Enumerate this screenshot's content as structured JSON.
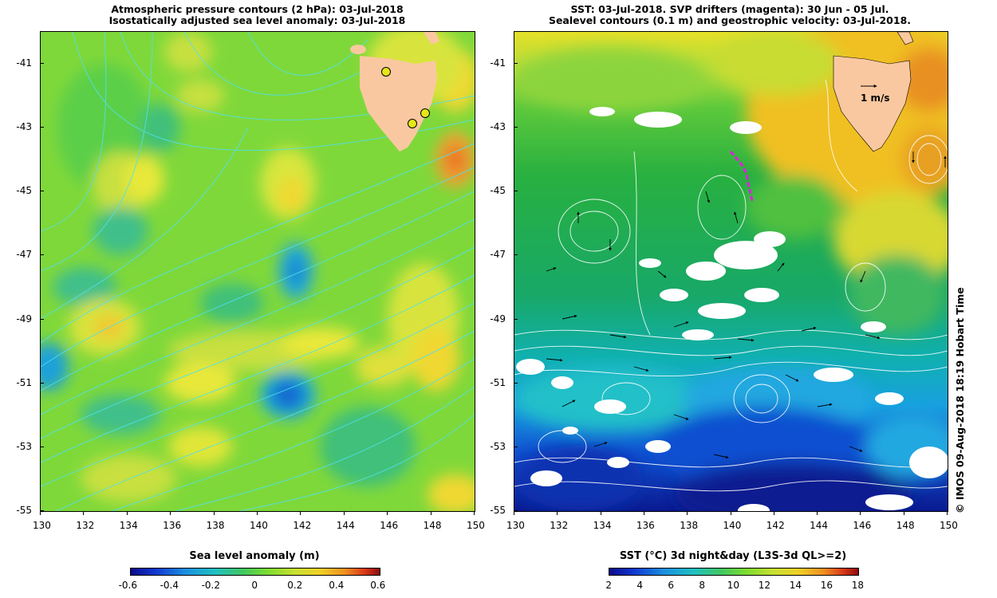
{
  "left_panel": {
    "title_line1": "Atmospheric pressure contours (2 hPa): 03-Jul-2018",
    "title_line2": "Isostatically adjusted sea level anomaly: 03-Jul-2018",
    "y_ticks": [
      "-41",
      "-43",
      "-45",
      "-47",
      "-49",
      "-51",
      "-53",
      "-55"
    ],
    "x_ticks": [
      "130",
      "132",
      "134",
      "136",
      "138",
      "140",
      "142",
      "144",
      "146",
      "148",
      "150"
    ],
    "colorbar": {
      "title": "Sea level anomaly (m)",
      "ticks": [
        "-0.6",
        "-0.4",
        "-0.2",
        "0",
        "0.2",
        "0.4",
        "0.6"
      ]
    },
    "tide_gauge_color": "#e6e61a",
    "land_color": "#fac8a0"
  },
  "right_panel": {
    "title_line1": "SST: 03-Jul-2018. SVP drifters (magenta): 30 Jun - 05 Jul.",
    "title_line2": "Sealevel contours (0.1 m) and geostrophic velocity: 03-Jul-2018.",
    "y_ticks": [
      "-41",
      "-43",
      "-45",
      "-47",
      "-49",
      "-51",
      "-53",
      "-55"
    ],
    "x_ticks": [
      "130",
      "132",
      "134",
      "136",
      "138",
      "140",
      "142",
      "144",
      "146",
      "148",
      "150"
    ],
    "velocity_scale_label": "1 m/s",
    "colorbar": {
      "title": "SST (°C) 3d night&day (L3S-3d QL>=2)",
      "ticks": [
        "2",
        "4",
        "6",
        "8",
        "10",
        "12",
        "14",
        "16",
        "18"
      ]
    },
    "drifter_color": "#e020e0"
  },
  "watermark": "© IMOS 09-Aug-2018 18:19 Hobart Time"
}
